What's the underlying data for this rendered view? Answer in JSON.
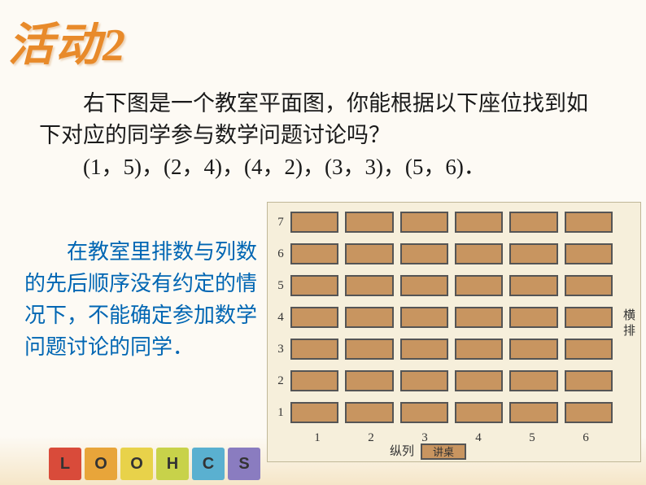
{
  "title": "活动2",
  "body_line1": "右下图是一个教室平面图，你能根据以下座位找到如下对应的同学参与数学问题讨论吗？",
  "body_coords": "(1，5)，(2，4)，(4，2)，(3，3)，(5，6)．",
  "note": "在教室里排数与列数的先后顺序没有约定的情况下，不能确定参加数学问题讨论的同学．",
  "diagram": {
    "rows": 7,
    "cols": 6,
    "row_labels": [
      "1",
      "2",
      "3",
      "4",
      "5",
      "6",
      "7"
    ],
    "col_labels": [
      "1",
      "2",
      "3",
      "4",
      "5",
      "6"
    ],
    "axis_y": "横排",
    "axis_x": "纵列",
    "podium": "讲桌",
    "desk_fill": "#c89560",
    "desk_border": "#555555",
    "panel_bg": "#f6efdb"
  },
  "blocks": {
    "letters": [
      "L",
      "O",
      "O",
      "H",
      "C",
      "S"
    ],
    "colors": [
      "#d94b3a",
      "#e8a53a",
      "#e8d24a",
      "#c8d24a",
      "#5ab0d0",
      "#8a7cc0"
    ]
  }
}
